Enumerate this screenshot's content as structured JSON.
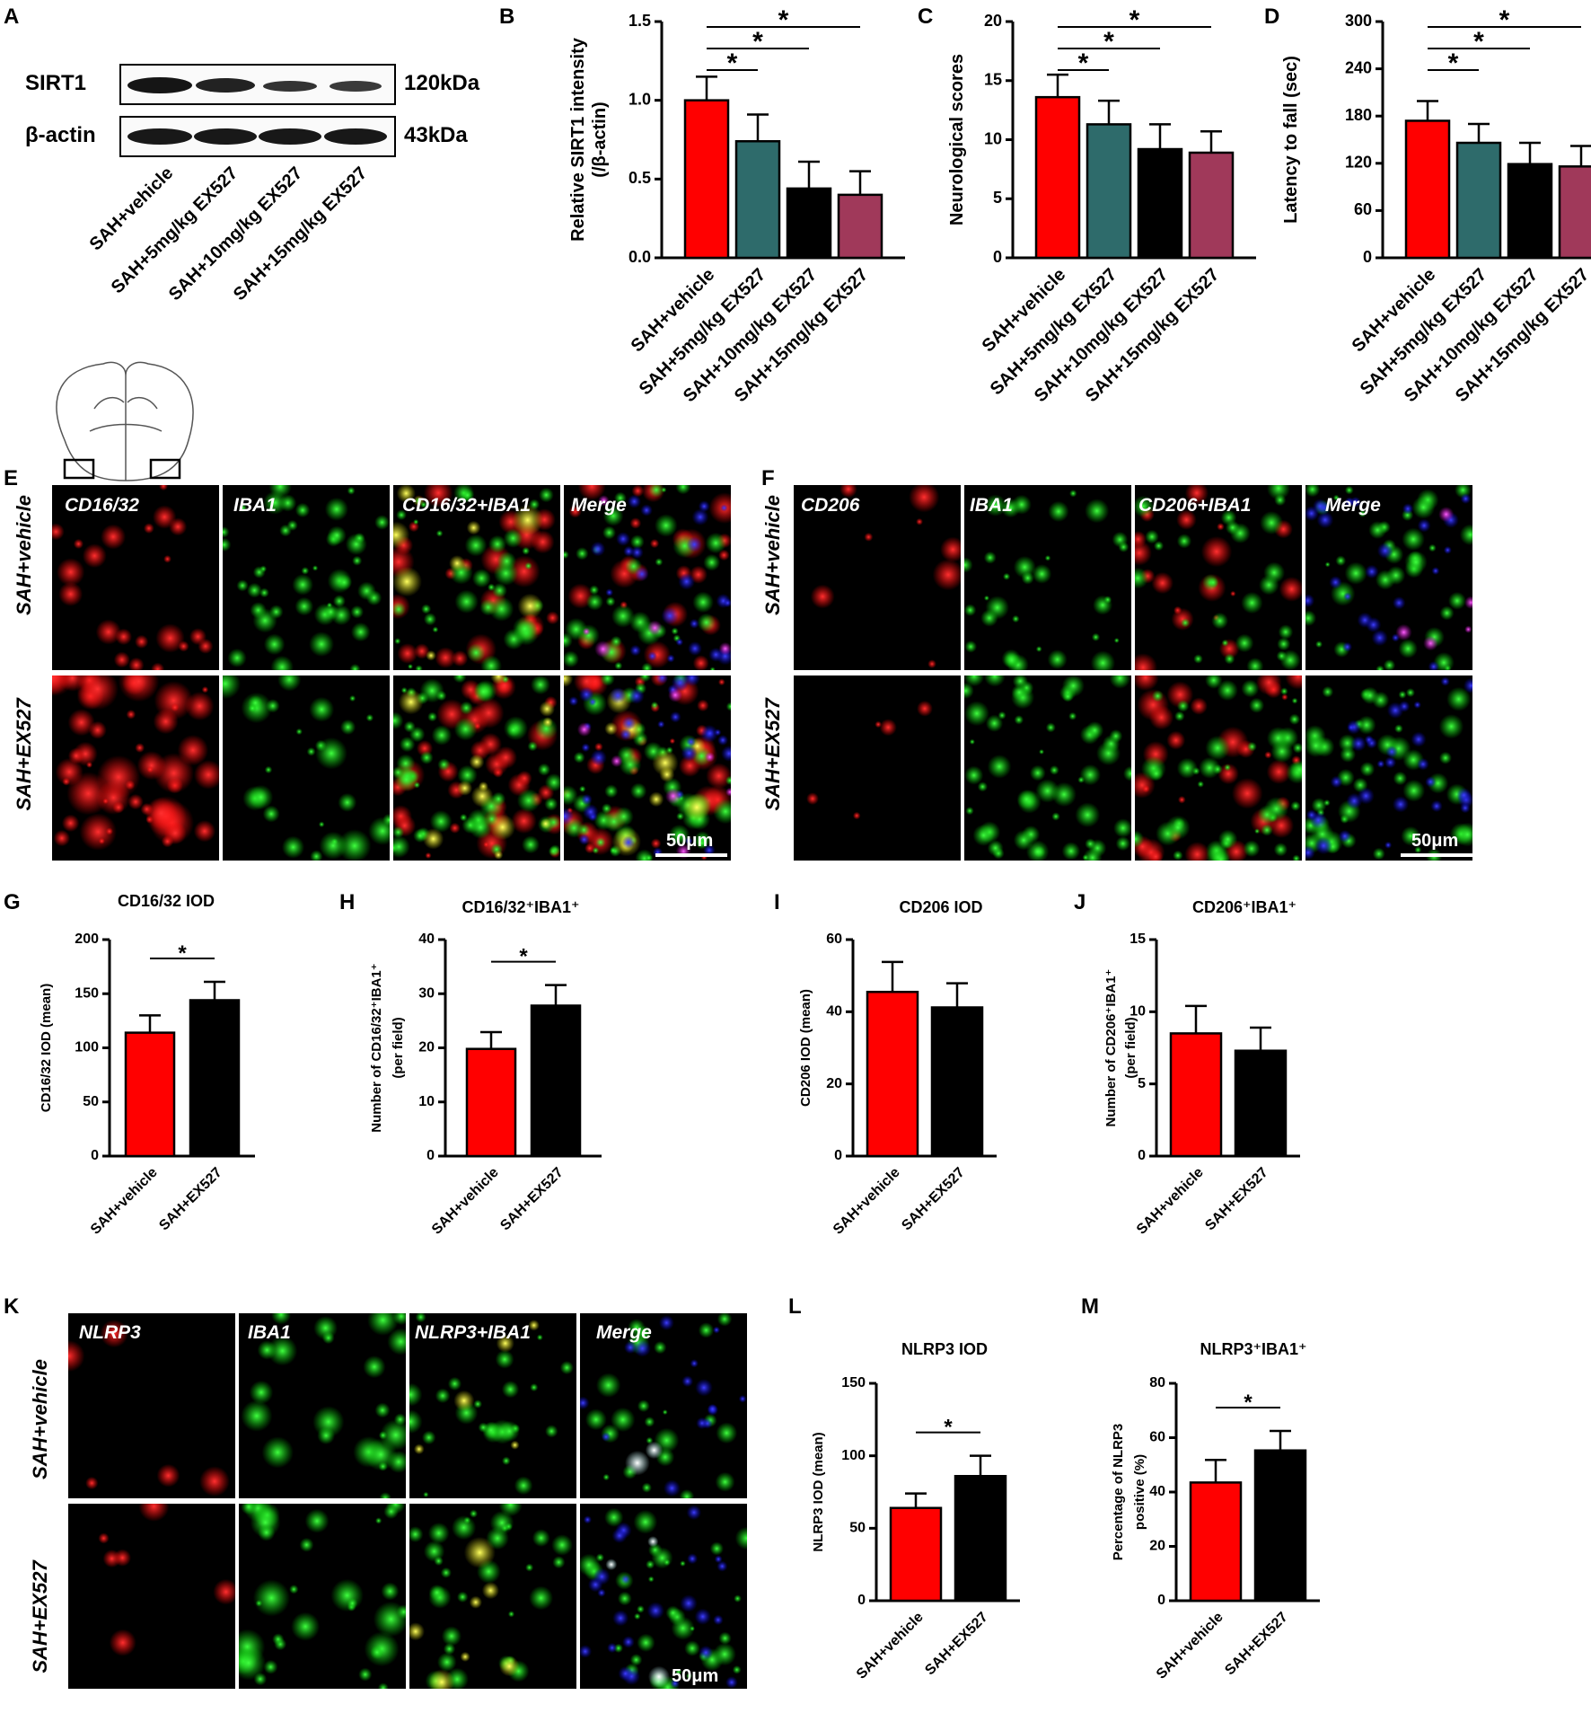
{
  "colors": {
    "vehicle": "#ff0000",
    "ex5": "#2e6b6b",
    "ex10": "#000000",
    "ex15": "#a0395a",
    "ex527": "#000000"
  },
  "panels": {
    "A": {
      "letter": "A",
      "blot_rows": [
        {
          "protein": "SIRT1",
          "size": "120kDa"
        },
        {
          "protein": "β-actin",
          "size": "43kDa"
        }
      ],
      "lanes": [
        "SAH+vehicle",
        "SAH+5mg/kg EX527",
        "SAH+10mg/kg EX527",
        "SAH+15mg/kg EX527"
      ]
    },
    "B": {
      "letter": "B"
    },
    "C": {
      "letter": "C"
    },
    "D": {
      "letter": "D"
    },
    "E": {
      "letter": "E",
      "columns": [
        "CD16/32",
        "IBA1",
        "CD16/32+IBA1",
        "Merge"
      ],
      "rows": [
        "SAH+vehicle",
        "SAH+EX527"
      ],
      "scale_bar": "50μm"
    },
    "F": {
      "letter": "F",
      "columns": [
        "CD206",
        "IBA1",
        "CD206+IBA1",
        "Merge"
      ],
      "rows": [
        "SAH+vehicle",
        "SAH+EX527"
      ],
      "scale_bar": "50μm"
    },
    "G": {
      "letter": "G"
    },
    "H": {
      "letter": "H"
    },
    "I": {
      "letter": "I"
    },
    "J": {
      "letter": "J"
    },
    "K": {
      "letter": "K",
      "columns": [
        "NLRP3",
        "IBA1",
        "NLRP3+IBA1",
        "Merge"
      ],
      "rows": [
        "SAH+vehicle",
        "SAH+EX527"
      ],
      "scale_bar": "50μm"
    },
    "L": {
      "letter": "L"
    },
    "M": {
      "letter": "M"
    }
  },
  "chart_data": [
    {
      "id": "B",
      "type": "bar",
      "title": "",
      "ylabel": "Relative SIRT1 intensity",
      "ylabel2": "(/β-actin)",
      "categories": [
        "SAH+vehicle",
        "SAH+5mg/kg EX527",
        "SAH+10mg/kg EX527",
        "SAH+15mg/kg EX527"
      ],
      "values": [
        1.0,
        0.74,
        0.44,
        0.4
      ],
      "errors": [
        0.15,
        0.17,
        0.17,
        0.15
      ],
      "ylim": [
        0,
        1.5
      ],
      "yticks": [
        "0.0",
        "0.5",
        "1.0",
        "1.5"
      ],
      "significance": [
        "*",
        "*",
        "*"
      ]
    },
    {
      "id": "C",
      "type": "bar",
      "title": "",
      "ylabel": "Neurological scores",
      "categories": [
        "SAH+vehicle",
        "SAH+5mg/kg EX527",
        "SAH+10mg/kg EX527",
        "SAH+15mg/kg EX527"
      ],
      "values": [
        13.6,
        11.3,
        9.2,
        8.9
      ],
      "errors": [
        1.9,
        2.0,
        2.1,
        1.8
      ],
      "ylim": [
        0,
        20
      ],
      "yticks": [
        "0",
        "5",
        "10",
        "15",
        "20"
      ],
      "significance": [
        "*",
        "*",
        "*"
      ]
    },
    {
      "id": "D",
      "type": "bar",
      "title": "",
      "ylabel": "Latency to fall (sec)",
      "categories": [
        "SAH+vehicle",
        "SAH+5mg/kg EX527",
        "SAH+10mg/kg EX527",
        "SAH+15mg/kg EX527"
      ],
      "values": [
        174,
        146,
        119,
        116
      ],
      "errors": [
        25,
        24,
        27,
        26
      ],
      "ylim": [
        0,
        300
      ],
      "yticks": [
        "0",
        "60",
        "120",
        "180",
        "240",
        "300"
      ],
      "significance": [
        "*",
        "*",
        "*"
      ]
    },
    {
      "id": "G",
      "type": "bar",
      "title": "CD16/32 IOD",
      "ylabel": "CD16/32 IOD (mean)",
      "categories": [
        "SAH+vehicle",
        "SAH+EX527"
      ],
      "values": [
        114,
        144
      ],
      "errors": [
        16,
        17
      ],
      "ylim": [
        0,
        200
      ],
      "yticks": [
        "0",
        "50",
        "100",
        "150",
        "200"
      ],
      "significance": [
        "*"
      ]
    },
    {
      "id": "H",
      "type": "bar",
      "title": "CD16/32⁺IBA1⁺",
      "ylabel": "Number of CD16/32⁺IBA1⁺",
      "ylabel2": "(per field)",
      "categories": [
        "SAH+vehicle",
        "SAH+EX527"
      ],
      "values": [
        19.8,
        27.8
      ],
      "errors": [
        3.1,
        3.8
      ],
      "ylim": [
        0,
        40
      ],
      "yticks": [
        "0",
        "10",
        "20",
        "30",
        "40"
      ],
      "significance": [
        "*"
      ]
    },
    {
      "id": "I",
      "type": "bar",
      "title": "CD206 IOD",
      "ylabel": "CD206 IOD (mean)",
      "categories": [
        "SAH+vehicle",
        "SAH+EX527"
      ],
      "values": [
        45.5,
        41.2
      ],
      "errors": [
        8.3,
        6.7
      ],
      "ylim": [
        0,
        60
      ],
      "yticks": [
        "0",
        "20",
        "40",
        "60"
      ],
      "significance": []
    },
    {
      "id": "J",
      "type": "bar",
      "title": "CD206⁺IBA1⁺",
      "ylabel": "Number of CD206⁺IBA1⁺",
      "ylabel2": "(per field)",
      "categories": [
        "SAH+vehicle",
        "SAH+EX527"
      ],
      "values": [
        8.5,
        7.3
      ],
      "errors": [
        1.9,
        1.6
      ],
      "ylim": [
        0,
        15
      ],
      "yticks": [
        "0",
        "5",
        "10",
        "15"
      ],
      "significance": []
    },
    {
      "id": "L",
      "type": "bar",
      "title": "NLRP3 IOD",
      "ylabel": "NLRP3 IOD (mean)",
      "categories": [
        "SAH+vehicle",
        "SAH+EX527"
      ],
      "values": [
        64,
        86
      ],
      "errors": [
        10,
        14
      ],
      "ylim": [
        0,
        150
      ],
      "yticks": [
        "0",
        "50",
        "100",
        "150"
      ],
      "significance": [
        "*"
      ]
    },
    {
      "id": "M",
      "type": "bar",
      "title": "NLRP3⁺IBA1⁺",
      "ylabel": "Percentage of NLRP3",
      "ylabel2": "positive (%)",
      "categories": [
        "SAH+vehicle",
        "SAH+EX527"
      ],
      "values": [
        43.5,
        55.3
      ],
      "errors": [
        8.3,
        7.2
      ],
      "ylim": [
        0,
        80
      ],
      "yticks": [
        "0",
        "20",
        "40",
        "60",
        "80"
      ],
      "significance": [
        "*"
      ]
    }
  ]
}
